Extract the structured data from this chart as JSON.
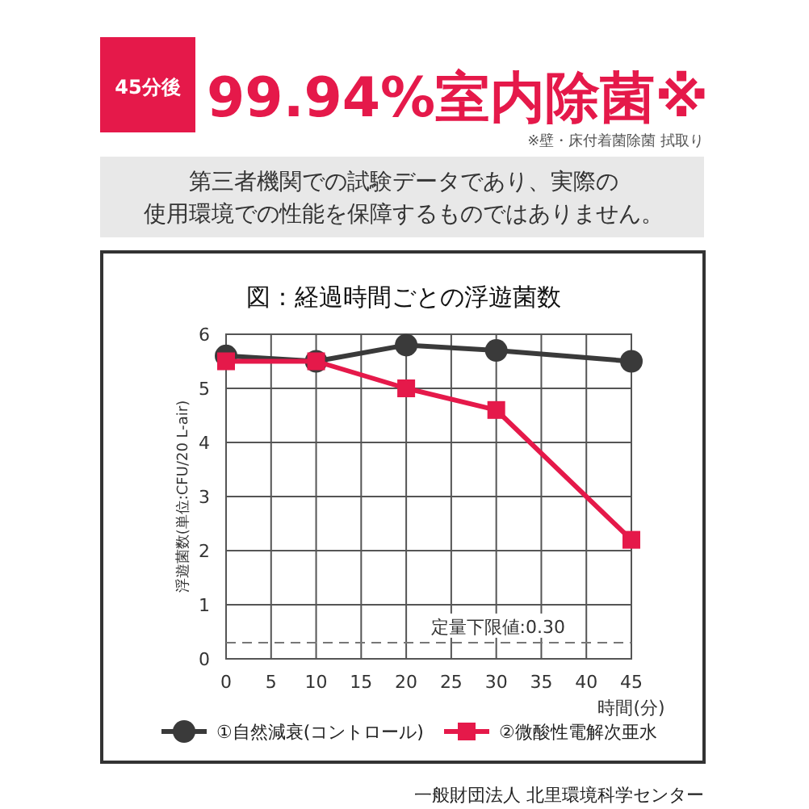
{
  "chart_data": {
    "type": "line",
    "title": "図：経過時間ごとの浮遊菌数",
    "xlabel": "時間(分)",
    "ylabel": "浮遊菌数(単位:CFU/20 L-air)",
    "x": [
      0,
      10,
      20,
      30,
      45
    ],
    "series": [
      {
        "name": "①自然減衰(コントロール)",
        "color": "#3a3a3a",
        "marker": "circle",
        "values": [
          5.6,
          5.5,
          5.8,
          5.7,
          5.5
        ]
      },
      {
        "name": "②微酸性電解次亜水",
        "color": "#e5194a",
        "marker": "square",
        "values": [
          5.5,
          5.5,
          5.0,
          4.6,
          2.2
        ]
      }
    ],
    "xlim": [
      0,
      45
    ],
    "xticks": [
      0,
      5,
      10,
      15,
      20,
      25,
      30,
      35,
      40,
      45
    ],
    "ylim": [
      0,
      6
    ],
    "yticks": [
      0,
      1,
      2,
      3,
      4,
      5,
      6
    ],
    "grid": true,
    "legend": "bottom",
    "line_style": "solid",
    "ref_lines": [
      {
        "axis": "y",
        "value": 0.3,
        "label": "定量下限値:0.30",
        "color": "#777777",
        "line_style": "dashed"
      }
    ],
    "annotations": [
      "45分後",
      "99.94%室内除菌※",
      "※壁・床付着菌除菌 拭取り",
      "第三者機関での試験データであり、実際の",
      "使用環境での性能を保障するものではありません。",
      "一般財団法人 北里環境科学センター"
    ]
  }
}
